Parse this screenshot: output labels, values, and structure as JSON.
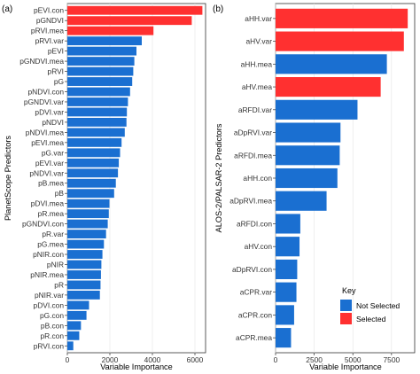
{
  "colors": {
    "selected": "#ff3030",
    "not_selected": "#1a6fd1"
  },
  "chart_data": [
    {
      "type": "bar",
      "orientation": "horizontal",
      "panel_label": "(a)",
      "xlabel": "Variable Importance",
      "ylabel": "PlanetScope Predictors",
      "xlim": [
        0,
        6500
      ],
      "xticks": [
        0,
        2000,
        4000,
        6000
      ],
      "grid": true,
      "categories": [
        "pEVI.con",
        "pGNDVI",
        "pRVI.mea",
        "pRVI.var",
        "pEVI",
        "pGNDVI.mea",
        "pRVI",
        "pG",
        "pNDVI.con",
        "pGNDVI.var",
        "pDVI.var",
        "pNDVI",
        "pNDVI.mea",
        "pEVI.mea",
        "pG.var",
        "pEVI.var",
        "pNDVI.var",
        "pB.mea",
        "pB",
        "pDVI.mea",
        "pR.mea",
        "pGNDVI.con",
        "pR.var",
        "pG.mea",
        "pNIR.con",
        "pNIR",
        "pNIR.mea",
        "pR",
        "pNIR.var",
        "pDVI.con",
        "pG.con",
        "pB.con",
        "pR.con",
        "pRVI.con"
      ],
      "values": [
        6350,
        5850,
        4050,
        3500,
        3250,
        3150,
        3100,
        3050,
        2950,
        2850,
        2800,
        2780,
        2700,
        2550,
        2480,
        2420,
        2380,
        2280,
        2200,
        1980,
        1950,
        1900,
        1820,
        1720,
        1650,
        1600,
        1580,
        1560,
        1530,
        1020,
        900,
        640,
        560,
        280
      ],
      "selected": [
        true,
        true,
        true,
        false,
        false,
        false,
        false,
        false,
        false,
        false,
        false,
        false,
        false,
        false,
        false,
        false,
        false,
        false,
        false,
        false,
        false,
        false,
        false,
        false,
        false,
        false,
        false,
        false,
        false,
        false,
        false,
        false,
        false,
        false
      ]
    },
    {
      "type": "bar",
      "orientation": "horizontal",
      "panel_label": "(b)",
      "xlabel": "Variable Importance",
      "ylabel": "ALOS-2/PALSAR-2 Predictors",
      "xlim": [
        0,
        9000
      ],
      "xticks": [
        0,
        2500,
        5000,
        7500
      ],
      "grid": true,
      "categories": [
        "aHH.var",
        "aHV.var",
        "aHH.mea",
        "aHV.mea",
        "aRFDI.var",
        "aDpRVI.var",
        "aRFDI.mea",
        "aHH.con",
        "aDpRVI.mea",
        "aRFDI.con",
        "aHV.con",
        "aDpRVI.con",
        "aCPR.var",
        "aCPR.con",
        "aCPR.mea"
      ],
      "values": [
        8550,
        8300,
        7200,
        6800,
        5300,
        4200,
        4150,
        4000,
        3300,
        1600,
        1550,
        1400,
        1350,
        1200,
        1000
      ],
      "selected": [
        true,
        true,
        false,
        true,
        false,
        false,
        false,
        false,
        false,
        false,
        false,
        false,
        false,
        false,
        false
      ],
      "legend": {
        "title": "Key",
        "placement": "bottom-right",
        "entries": [
          "Not Selected",
          "Selected"
        ]
      }
    }
  ]
}
